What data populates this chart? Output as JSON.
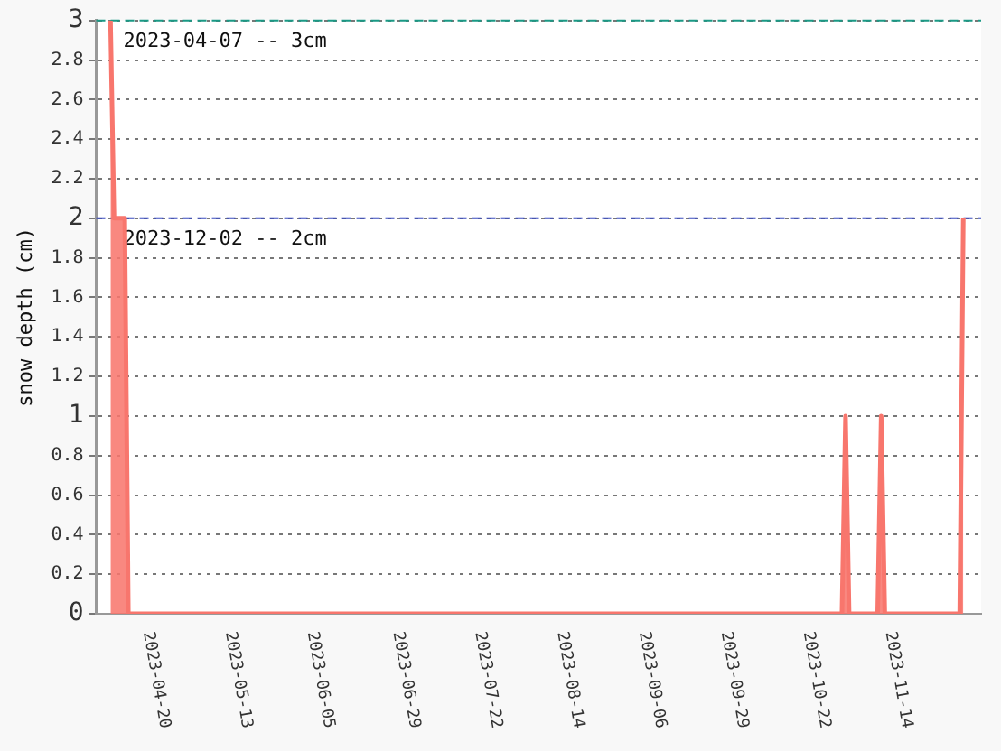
{
  "chart_data": {
    "type": "area",
    "ylabel": "snow depth (cm)",
    "x": [
      "2023-04-07",
      "2023-04-08",
      "2023-04-11",
      "2023-04-12",
      "2023-10-29",
      "2023-10-30",
      "2023-10-31",
      "2023-11-08",
      "2023-11-09",
      "2023-11-10",
      "2023-12-01",
      "2023-12-02"
    ],
    "series": [
      {
        "color": "#f8766d",
        "values": [
          3,
          2,
          2,
          0,
          0,
          1,
          0,
          0,
          1,
          0,
          0,
          2
        ]
      }
    ],
    "xlim": [
      "2023-04-03",
      "2023-12-07"
    ],
    "xticks": [
      "2023-04-20",
      "2023-05-13",
      "2023-06-05",
      "2023-06-29",
      "2023-07-22",
      "2023-08-14",
      "2023-09-06",
      "2023-09-29",
      "2023-10-22",
      "2023-11-14"
    ],
    "ylim": [
      0,
      3
    ],
    "yticks": [
      0,
      0.2,
      0.4,
      0.6,
      0.8,
      1,
      1.2,
      1.4,
      1.6,
      1.8,
      2,
      2.2,
      2.4,
      2.6,
      2.8,
      3
    ],
    "grid": "y",
    "legend": false,
    "ref_lines": [
      {
        "axis": "y",
        "value": 3,
        "label": "2023-04-07 -- 3cm",
        "color": "#1a9985",
        "line_style": "dashed"
      },
      {
        "axis": "y",
        "value": 2,
        "label": "2023-12-02 -- 2cm",
        "color": "#3b4cc0",
        "line_style": "dashed"
      }
    ]
  }
}
